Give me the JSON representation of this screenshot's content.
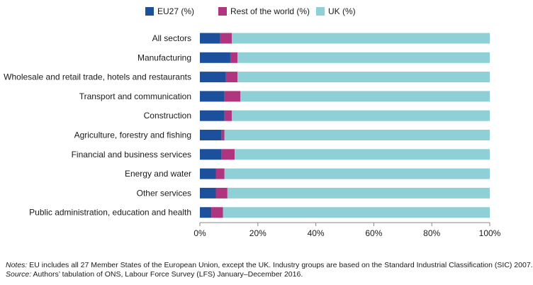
{
  "colors": {
    "eu27": "#1c4f9c",
    "row": "#b0357f",
    "uk": "#8ed0d6",
    "axis": "#888888",
    "grid": "#d9d9d9"
  },
  "chart_data": {
    "type": "bar",
    "orientation": "horizontal",
    "stacked": true,
    "categories": [
      "All sectors",
      "Manufacturing",
      "Wholesale and retail trade, hotels and restaurants",
      "Transport and communication",
      "Construction",
      "Agriculture, forestry and fishing",
      "Financial and business services",
      "Energy and water",
      "Other services",
      "Public administration, education and health"
    ],
    "series": [
      {
        "name": "EU27 (%)",
        "values": [
          7,
          10.5,
          9,
          8.5,
          8.5,
          7.5,
          7.5,
          5.5,
          5.5,
          4
        ]
      },
      {
        "name": "Rest of the world (%)",
        "values": [
          4,
          2.5,
          4,
          5.5,
          2.5,
          1,
          4.5,
          3,
          4,
          4
        ]
      },
      {
        "name": "UK (%)",
        "values": [
          89,
          87,
          87,
          86,
          89,
          91.5,
          88,
          91.5,
          90.5,
          92
        ]
      }
    ],
    "x_ticks": [
      "0%",
      "20%",
      "40%",
      "60%",
      "80%",
      "100%"
    ],
    "xlim": [
      0,
      100
    ],
    "legend_position": "top",
    "grid": false
  },
  "notes": {
    "notes_label": "Notes:",
    "notes_text": " EU includes all 27 Member States of the European Union, except the UK. Industry groups are based on the Standard Industrial Classification (SIC) 2007.",
    "source_label": "Source:",
    "source_text": " Authors’ tabulation of ONS, Labour Force Survey (LFS) January–December 2016."
  }
}
